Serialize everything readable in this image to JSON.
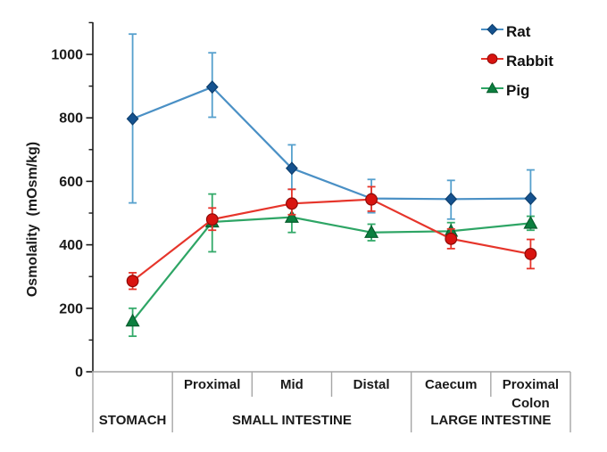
{
  "background": "#ffffff",
  "axis_color": "#1a1a1a",
  "grid_table_color": "#a6a6a6",
  "chart_data": {
    "type": "line",
    "title": "",
    "ylabel": "Osmolality  (mOsm/kg)",
    "ylim": [
      0,
      1100
    ],
    "yticks_major": [
      0,
      200,
      400,
      600,
      800,
      1000
    ],
    "yticks_minor": [
      100,
      300,
      500,
      700,
      900,
      1100
    ],
    "grid": "off",
    "legend_position": "top-right",
    "legend_order": [
      "Rat",
      "Rabbit",
      "Pig"
    ],
    "categories": [
      "Stomach",
      "Small intestine - Proximal",
      "Small intestine - Mid",
      "Small intestine - Distal",
      "Caecum",
      "Proximal Colon"
    ],
    "series": [
      {
        "name": "Rat",
        "marker": "diamond",
        "line_color": "#4a90c5",
        "error_color": "#56a0cd",
        "marker_color": "#15528f",
        "edge_color": "#0d3f6e",
        "values": [
          797,
          897,
          641,
          546,
          544,
          546
        ],
        "err_up": [
          267,
          108,
          74,
          60,
          59,
          90
        ],
        "err_down": [
          265,
          95,
          66,
          45,
          63,
          90
        ]
      },
      {
        "name": "Pig",
        "marker": "triangle",
        "line_color": "#2ea565",
        "error_color": "#34aa6a",
        "marker_color": "#0c7f3f",
        "edge_color": "#075c2c",
        "values": [
          160,
          472,
          487,
          439,
          443,
          468
        ],
        "err_up": [
          40,
          88,
          48,
          26,
          27,
          22
        ],
        "err_down": [
          48,
          94,
          48,
          26,
          27,
          22
        ]
      },
      {
        "name": "Rabbit",
        "marker": "circle",
        "line_color": "#e6352b",
        "error_color": "#e6352b",
        "marker_color": "#d81410",
        "edge_color": "#8f0b08",
        "values": [
          286,
          480,
          530,
          543,
          419,
          371
        ],
        "err_up": [
          26,
          36,
          45,
          40,
          31,
          46
        ],
        "err_down": [
          26,
          34,
          35,
          37,
          31,
          46
        ]
      }
    ],
    "x_axis_table": {
      "cells": [
        {
          "line1": "",
          "line2": ""
        },
        {
          "line1": "Proximal",
          "line2": ""
        },
        {
          "line1": "Mid",
          "line2": ""
        },
        {
          "line1": "Distal",
          "line2": ""
        },
        {
          "line1": "Caecum",
          "line2": ""
        },
        {
          "line1": "Proximal",
          "line2": "Colon"
        }
      ],
      "groups": [
        {
          "label": "STOMACH"
        },
        {
          "label": "SMALL INTESTINE"
        },
        {
          "label": "LARGE INTESTINE"
        }
      ]
    }
  }
}
